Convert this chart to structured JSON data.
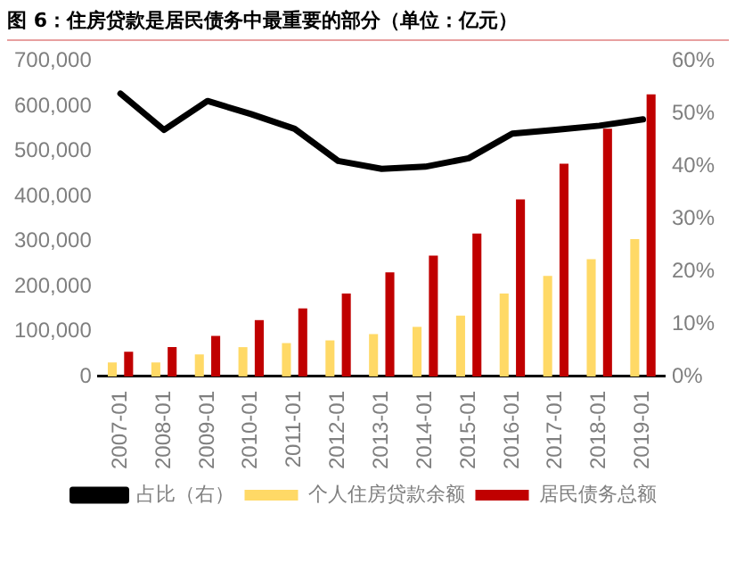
{
  "chart_data": {
    "type": "bar",
    "title": "图 6：住房贷款是居民债务中最重要的部分（单位：亿元）",
    "categories": [
      "2007-01",
      "2008-01",
      "2009-01",
      "2010-01",
      "2011-01",
      "2012-01",
      "2013-01",
      "2014-01",
      "2015-01",
      "2016-01",
      "2017-01",
      "2018-01",
      "2019-01"
    ],
    "series": [
      {
        "name": "个人住房贷款余额",
        "color": "#ffd966",
        "values": [
          31000,
          31000,
          49000,
          65000,
          74000,
          80000,
          94000,
          110000,
          135000,
          184000,
          223000,
          260000,
          305000
        ]
      },
      {
        "name": "居民债务总额",
        "color": "#c00000",
        "values": [
          55000,
          65000,
          90000,
          125000,
          151000,
          184000,
          231000,
          268000,
          317000,
          393000,
          472000,
          550000,
          626000
        ]
      },
      {
        "name": "占比（右）",
        "type": "line",
        "axis": "y2",
        "color": "#000000",
        "values": [
          53.8,
          46.9,
          52.4,
          49.9,
          47.1,
          41.0,
          39.5,
          39.9,
          41.5,
          46.2,
          46.9,
          47.7,
          48.9
        ]
      }
    ],
    "ylim": [
      0,
      700000
    ],
    "yticks": [
      {
        "value": 0,
        "label": "0"
      },
      {
        "value": 100000,
        "label": "100,000"
      },
      {
        "value": 200000,
        "label": "200,000"
      },
      {
        "value": 300000,
        "label": "300,000"
      },
      {
        "value": 400000,
        "label": "400,000"
      },
      {
        "value": 500000,
        "label": "500,000"
      },
      {
        "value": 600000,
        "label": "600,000"
      },
      {
        "value": 700000,
        "label": "700,000"
      }
    ],
    "y2lim": [
      0,
      60
    ],
    "y2ticks": [
      {
        "value": 0,
        "label": "0%"
      },
      {
        "value": 10,
        "label": "10%"
      },
      {
        "value": 20,
        "label": "20%"
      },
      {
        "value": 30,
        "label": "30%"
      },
      {
        "value": 40,
        "label": "40%"
      },
      {
        "value": 50,
        "label": "50%"
      },
      {
        "value": 60,
        "label": "60%"
      }
    ],
    "grid": false,
    "legend": "bottom",
    "marker": "none"
  }
}
